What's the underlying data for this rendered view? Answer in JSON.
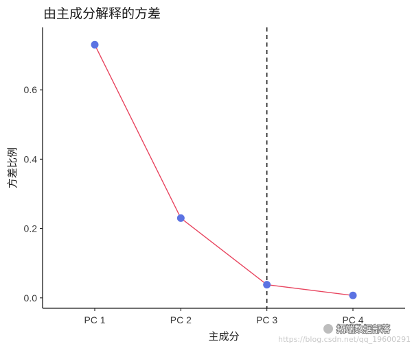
{
  "chart_data": {
    "type": "line",
    "title": "由主成分解释的方差",
    "xlabel": "主成分",
    "ylabel": "方差比例",
    "categories": [
      "PC 1",
      "PC 2",
      "PC 3",
      "PC 4"
    ],
    "series": [
      {
        "values": [
          0.73,
          0.23,
          0.038,
          0.007
        ]
      }
    ],
    "ylim": [
      -0.03,
      0.78
    ],
    "yticks": [
      0.0,
      0.2,
      0.4,
      0.6
    ],
    "ytick_labels": [
      "0.0",
      "0.2",
      "0.4",
      "0.6"
    ],
    "vline_at_category": "PC 3",
    "grid": false,
    "colors": {
      "line": "#e8455f",
      "point": "#5b72e2",
      "vline": "#1a1a1a",
      "axis": "#1a1a1a"
    }
  },
  "watermark": {
    "brand": "拓端数据部落",
    "url": "https://blog.csdn.net/qq_19600291"
  }
}
